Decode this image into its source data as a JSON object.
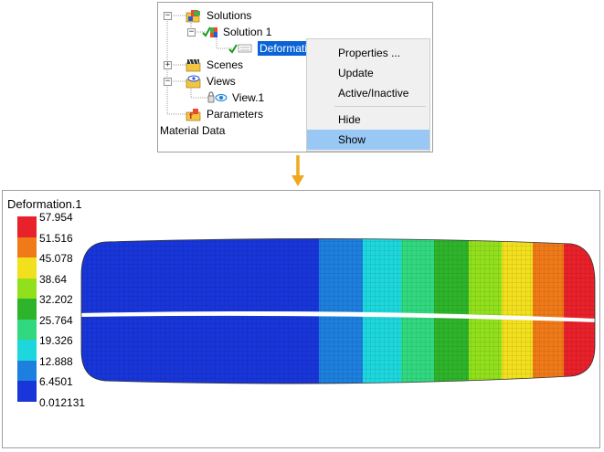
{
  "tree": {
    "nodes": {
      "solutions": "Solutions",
      "solution1": "Solution 1",
      "deformation": "Deformati",
      "scenes": "Scenes",
      "views": "Views",
      "view1": "View.1",
      "parameters": "Parameters"
    },
    "material": "Material Data",
    "icons": {
      "solutions": "solutions-icon",
      "solution1": "solution-icon",
      "deformation": "deformation-icon",
      "scenes": "scenes-icon",
      "views": "views-icon",
      "view1": "view-eye-icon",
      "parameters": "parameters-icon"
    }
  },
  "context_menu": {
    "items": [
      "Properties ...",
      "Update",
      "Active/Inactive",
      "Hide",
      "Show"
    ],
    "highlighted": "Show"
  },
  "legend": {
    "title": "Deformation.1",
    "ticks": [
      "57.954",
      "51.516",
      "45.078",
      "38.64",
      "32.202",
      "25.764",
      "19.326",
      "12.888",
      "6.4501",
      "0.012131"
    ],
    "colors": [
      "#e8212a",
      "#f07a18",
      "#f2e01e",
      "#92e01c",
      "#2eb42b",
      "#31d880",
      "#1dd7dd",
      "#1d7fde",
      "#1836d9"
    ]
  },
  "colors": {
    "selection": "#0a64d6",
    "menu_hover": "#99c8f5",
    "arrow": "#f0a81f"
  }
}
